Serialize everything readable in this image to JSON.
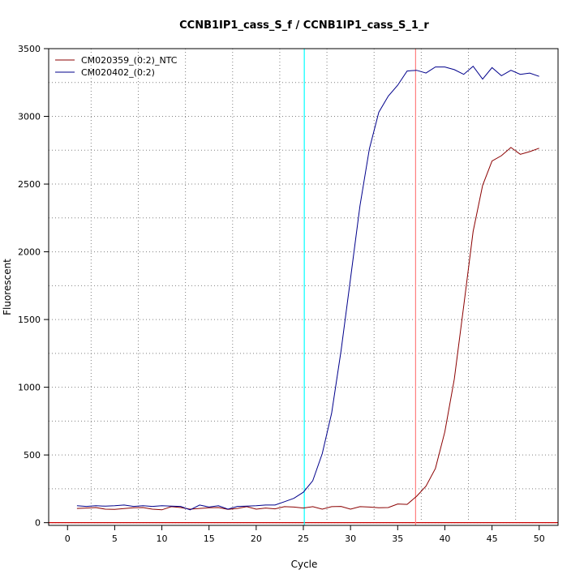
{
  "chart_data": {
    "type": "line",
    "title": "CCNB1IP1_cass_S_f / CCNB1IP1_cass_S_1_r",
    "xlabel": "Cycle",
    "ylabel": "Fluorescent",
    "xlim": [
      -2,
      52
    ],
    "ylim": [
      -20,
      3500
    ],
    "x_ticks": [
      0,
      5,
      10,
      15,
      20,
      25,
      30,
      35,
      40,
      45,
      50
    ],
    "y_ticks": [
      0,
      500,
      1000,
      1500,
      2000,
      2500,
      3000,
      3500
    ],
    "grid": true,
    "legend_position": "top-left",
    "threshold_y": 0,
    "threshold_color": "#cc0000",
    "vertical_lines": [
      {
        "x": 25.1,
        "color": "#00ffff"
      },
      {
        "x": 36.9,
        "color": "#ff8080"
      }
    ],
    "series": [
      {
        "name": "CM020359_(0:2)_NTC",
        "color": "#8b0000",
        "x": [
          1,
          2,
          3,
          4,
          5,
          6,
          7,
          8,
          9,
          10,
          11,
          12,
          13,
          14,
          15,
          16,
          17,
          18,
          19,
          20,
          21,
          22,
          23,
          24,
          25,
          26,
          27,
          28,
          29,
          30,
          31,
          32,
          33,
          34,
          35,
          36,
          37,
          38,
          39,
          40,
          41,
          42,
          43,
          44,
          45,
          46,
          47,
          48,
          49,
          50
        ],
        "values": [
          105,
          108,
          112,
          100,
          98,
          104,
          110,
          112,
          100,
          95,
          118,
          112,
          100,
          105,
          110,
          112,
          98,
          105,
          118,
          100,
          108,
          102,
          118,
          115,
          108,
          118,
          100,
          118,
          120,
          100,
          118,
          115,
          110,
          112,
          138,
          135,
          195,
          270,
          400,
          670,
          1060,
          1600,
          2150,
          2490,
          2670,
          2710,
          2770,
          2720,
          2740,
          2765
        ]
      },
      {
        "name": "CM020402_(0:2)",
        "color": "#00008b",
        "x": [
          1,
          2,
          3,
          4,
          5,
          6,
          7,
          8,
          9,
          10,
          11,
          12,
          13,
          14,
          15,
          16,
          17,
          18,
          19,
          20,
          21,
          22,
          23,
          24,
          25,
          26,
          27,
          28,
          29,
          30,
          31,
          32,
          33,
          34,
          35,
          36,
          37,
          38,
          39,
          40,
          41,
          42,
          43,
          44,
          45,
          46,
          47,
          48,
          49,
          50
        ],
        "values": [
          125,
          120,
          125,
          122,
          125,
          130,
          120,
          125,
          120,
          125,
          122,
          120,
          95,
          130,
          115,
          125,
          100,
          120,
          122,
          125,
          130,
          130,
          155,
          180,
          225,
          310,
          510,
          810,
          1270,
          1800,
          2340,
          2760,
          3030,
          3150,
          3230,
          3335,
          3340,
          3320,
          3365,
          3365,
          3345,
          3310,
          3370,
          3275,
          3360,
          3300,
          3340,
          3310,
          3320,
          3295
        ]
      }
    ]
  }
}
